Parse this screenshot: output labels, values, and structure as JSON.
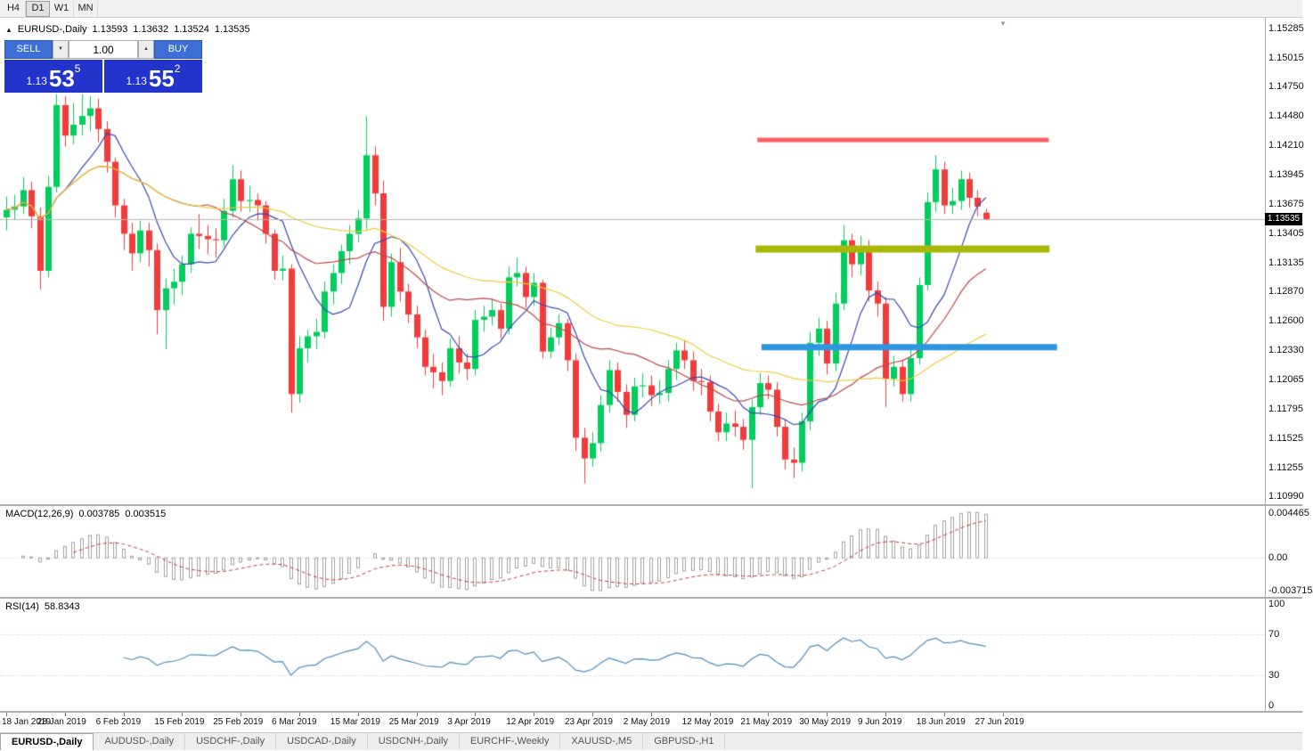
{
  "toolbar": {
    "timeframes": [
      "H4",
      "D1",
      "W1",
      "MN"
    ],
    "active": "D1"
  },
  "chart_header": {
    "symbol_label": "EURUSD-,Daily",
    "open": "1.13593",
    "high": "1.13632",
    "low": "1.13524",
    "close": "1.13535"
  },
  "trade_panel": {
    "sell_label": "SELL",
    "buy_label": "BUY",
    "volume": "1.00",
    "sell_price": {
      "prefix": "1.13",
      "main": "53",
      "sup": "5"
    },
    "buy_price": {
      "prefix": "1.13",
      "main": "55",
      "sup": "2"
    }
  },
  "icons": {
    "panel_toggle": "▲",
    "shift_marker": "▼",
    "spin_up": "▲",
    "spin_down": "▼"
  },
  "price_axis_labels": [
    "1.15285",
    "1.15015",
    "1.14750",
    "1.14480",
    "1.14210",
    "1.13945",
    "1.13675",
    "1.13405",
    "1.13135",
    "1.12870",
    "1.12600",
    "1.12330",
    "1.12065",
    "1.11795",
    "1.11525",
    "1.11255",
    "1.10990"
  ],
  "current_price_tag": "1.13535",
  "date_axis_labels": [
    "18 Jan 2019",
    "28 Jan 2019",
    "6 Feb 2019",
    "15 Feb 2019",
    "25 Feb 2019",
    "6 Mar 2019",
    "15 Mar 2019",
    "25 Mar 2019",
    "3 Apr 2019",
    "12 Apr 2019",
    "23 Apr 2019",
    "2 May 2019",
    "12 May 2019",
    "21 May 2019",
    "30 May 2019",
    "9 Jun 2019",
    "18 Jun 2019",
    "27 Jun 2019"
  ],
  "indicators": {
    "macd": {
      "label": "MACD(12,26,9)",
      "value": "0.003785",
      "signal_value": "0.003515",
      "axis_labels": [
        "0.004465",
        "0.00",
        "-0.003715"
      ]
    },
    "rsi": {
      "label": "RSI(14)",
      "value": "58.8343",
      "axis_labels": [
        "100",
        "70",
        "30",
        "0"
      ],
      "levels": [
        70,
        30
      ]
    }
  },
  "tabs": [
    {
      "label": "EURUSD-,Daily",
      "active": true
    },
    {
      "label": "AUDUSD-,Daily",
      "active": false
    },
    {
      "label": "USDCHF-,Daily",
      "active": false
    },
    {
      "label": "USDCAD-,Daily",
      "active": false
    },
    {
      "label": "USDCNH-,Daily",
      "active": false
    },
    {
      "label": "EURCHF-,Weekly",
      "active": false
    },
    {
      "label": "XAUUSD-,M5",
      "active": false
    },
    {
      "label": "GBPUSD-,H1",
      "active": false
    }
  ],
  "colors": {
    "up_candle": "#00CE5C",
    "down_candle": "#F23B3B",
    "ma_fast": "#3647B3",
    "ma_mid": "#C04646",
    "ma_slow": "#EFCB3C",
    "macd_hist": "#A0A0A0",
    "macd_signal": "#C93A3A",
    "rsi_line": "#4C8EBE",
    "level_line": "#C8C8C8",
    "current_price_line": "#B5B5B5",
    "tag_bg": "#000000"
  },
  "chart_data": {
    "type": "candlestick",
    "symbol": "EURUSD-",
    "timeframe": "Daily",
    "y_range": [
      1.1092,
      1.1538
    ],
    "current_price": 1.13535,
    "hlines": [
      {
        "price": 1.1426,
        "start_index": 89.7,
        "end_index": 124.5,
        "color": "#FA5E5E",
        "width": 5
      },
      {
        "price": 1.1326,
        "start_index": 89.5,
        "end_index": 124.6,
        "color": "#A9B808",
        "width": 8
      },
      {
        "price": 1.1236,
        "start_index": 90.2,
        "end_index": 125.5,
        "color": "#2F96E0",
        "width": 7
      }
    ],
    "ohlc": [
      [
        1.1355,
        1.1374,
        1.1343,
        1.1362
      ],
      [
        1.1362,
        1.1376,
        1.1353,
        1.1365
      ],
      [
        1.1365,
        1.1392,
        1.1358,
        1.138
      ],
      [
        1.138,
        1.1388,
        1.1345,
        1.1356
      ],
      [
        1.1356,
        1.1364,
        1.1289,
        1.1306
      ],
      [
        1.1306,
        1.1393,
        1.13,
        1.1383
      ],
      [
        1.1383,
        1.1468,
        1.1378,
        1.1458
      ],
      [
        1.1458,
        1.1466,
        1.142,
        1.143
      ],
      [
        1.143,
        1.146,
        1.1422,
        1.144
      ],
      [
        1.144,
        1.1468,
        1.143,
        1.1448
      ],
      [
        1.1448,
        1.1466,
        1.1434,
        1.1455
      ],
      [
        1.1455,
        1.1464,
        1.1424,
        1.1436
      ],
      [
        1.1436,
        1.1443,
        1.1396,
        1.1406
      ],
      [
        1.1406,
        1.141,
        1.1355,
        1.1366
      ],
      [
        1.1366,
        1.1372,
        1.1325,
        1.134
      ],
      [
        1.134,
        1.135,
        1.1306,
        1.1322
      ],
      [
        1.1322,
        1.1352,
        1.1314,
        1.1343
      ],
      [
        1.1343,
        1.135,
        1.131,
        1.1325
      ],
      [
        1.1325,
        1.1331,
        1.1248,
        1.127
      ],
      [
        1.127,
        1.1299,
        1.1234,
        1.129
      ],
      [
        1.129,
        1.1308,
        1.1275,
        1.1296
      ],
      [
        1.1296,
        1.132,
        1.1284,
        1.1312
      ],
      [
        1.1312,
        1.1346,
        1.1304,
        1.134
      ],
      [
        1.134,
        1.1358,
        1.1326,
        1.1338
      ],
      [
        1.1338,
        1.1348,
        1.1321,
        1.1335
      ],
      [
        1.1335,
        1.1345,
        1.1318,
        1.1334
      ],
      [
        1.1334,
        1.1372,
        1.1328,
        1.1361
      ],
      [
        1.1361,
        1.1403,
        1.1355,
        1.139
      ],
      [
        1.139,
        1.1398,
        1.136,
        1.137
      ],
      [
        1.137,
        1.1384,
        1.136,
        1.1371
      ],
      [
        1.1371,
        1.1377,
        1.1352,
        1.1366
      ],
      [
        1.1366,
        1.137,
        1.1331,
        1.134
      ],
      [
        1.134,
        1.1344,
        1.1298,
        1.1306
      ],
      [
        1.1306,
        1.132,
        1.1297,
        1.1308
      ],
      [
        1.1308,
        1.1312,
        1.1176,
        1.1193
      ],
      [
        1.1193,
        1.1246,
        1.1185,
        1.1235
      ],
      [
        1.1235,
        1.1252,
        1.1222,
        1.1246
      ],
      [
        1.1246,
        1.1262,
        1.1234,
        1.125
      ],
      [
        1.125,
        1.1296,
        1.1244,
        1.1287
      ],
      [
        1.1287,
        1.1312,
        1.1275,
        1.1304
      ],
      [
        1.1304,
        1.133,
        1.1294,
        1.1324
      ],
      [
        1.1324,
        1.1348,
        1.1312,
        1.134
      ],
      [
        1.134,
        1.1362,
        1.1332,
        1.1354
      ],
      [
        1.1354,
        1.1448,
        1.1344,
        1.1412
      ],
      [
        1.1412,
        1.142,
        1.1366,
        1.1377
      ],
      [
        1.1377,
        1.1389,
        1.126,
        1.1273
      ],
      [
        1.1273,
        1.1322,
        1.1264,
        1.1314
      ],
      [
        1.1314,
        1.1327,
        1.1278,
        1.1287
      ],
      [
        1.1287,
        1.1294,
        1.1258,
        1.1266
      ],
      [
        1.1266,
        1.1274,
        1.1235,
        1.1245
      ],
      [
        1.1245,
        1.1252,
        1.121,
        1.1218
      ],
      [
        1.1218,
        1.123,
        1.1198,
        1.1213
      ],
      [
        1.1213,
        1.1222,
        1.1192,
        1.1205
      ],
      [
        1.1205,
        1.1244,
        1.12,
        1.1235
      ],
      [
        1.1235,
        1.1246,
        1.1212,
        1.1222
      ],
      [
        1.1222,
        1.123,
        1.1206,
        1.1216
      ],
      [
        1.1216,
        1.127,
        1.121,
        1.1261
      ],
      [
        1.1261,
        1.1274,
        1.125,
        1.1264
      ],
      [
        1.1264,
        1.128,
        1.1256,
        1.127
      ],
      [
        1.127,
        1.1276,
        1.1244,
        1.1253
      ],
      [
        1.1253,
        1.131,
        1.1248,
        1.13
      ],
      [
        1.13,
        1.1318,
        1.1292,
        1.1304
      ],
      [
        1.1304,
        1.131,
        1.1272,
        1.1282
      ],
      [
        1.1282,
        1.1304,
        1.1274,
        1.1295
      ],
      [
        1.1295,
        1.1298,
        1.1226,
        1.1232
      ],
      [
        1.1232,
        1.1254,
        1.1226,
        1.1245
      ],
      [
        1.1245,
        1.1266,
        1.1238,
        1.1258
      ],
      [
        1.1258,
        1.1262,
        1.1214,
        1.1224
      ],
      [
        1.1224,
        1.123,
        1.1141,
        1.1153
      ],
      [
        1.1153,
        1.1162,
        1.1111,
        1.1134
      ],
      [
        1.1134,
        1.1158,
        1.1126,
        1.1148
      ],
      [
        1.1148,
        1.1192,
        1.114,
        1.1183
      ],
      [
        1.1183,
        1.1224,
        1.1176,
        1.1215
      ],
      [
        1.1215,
        1.1222,
        1.1186,
        1.1195
      ],
      [
        1.1195,
        1.1202,
        1.1162,
        1.1174
      ],
      [
        1.1174,
        1.1208,
        1.1168,
        1.12
      ],
      [
        1.12,
        1.1212,
        1.119,
        1.1201
      ],
      [
        1.1201,
        1.121,
        1.1182,
        1.1192
      ],
      [
        1.1192,
        1.1206,
        1.1184,
        1.1194
      ],
      [
        1.1194,
        1.1224,
        1.1186,
        1.1216
      ],
      [
        1.1216,
        1.124,
        1.1206,
        1.1233
      ],
      [
        1.1233,
        1.1242,
        1.1216,
        1.1224
      ],
      [
        1.1224,
        1.1232,
        1.1196,
        1.1205
      ],
      [
        1.1205,
        1.1216,
        1.1192,
        1.1204
      ],
      [
        1.1204,
        1.121,
        1.1168,
        1.1177
      ],
      [
        1.1177,
        1.1184,
        1.115,
        1.1158
      ],
      [
        1.1158,
        1.1176,
        1.115,
        1.1166
      ],
      [
        1.1166,
        1.1178,
        1.1154,
        1.1163
      ],
      [
        1.1163,
        1.117,
        1.1142,
        1.1151
      ],
      [
        1.1151,
        1.1188,
        1.1107,
        1.1181
      ],
      [
        1.1181,
        1.1212,
        1.1174,
        1.1203
      ],
      [
        1.1203,
        1.121,
        1.1188,
        1.1197
      ],
      [
        1.1197,
        1.1204,
        1.1154,
        1.1163
      ],
      [
        1.1163,
        1.117,
        1.1124,
        1.1133
      ],
      [
        1.1133,
        1.1144,
        1.1116,
        1.113
      ],
      [
        1.113,
        1.1176,
        1.1122,
        1.1168
      ],
      [
        1.1168,
        1.125,
        1.116,
        1.124
      ],
      [
        1.124,
        1.1263,
        1.1228,
        1.1253
      ],
      [
        1.1253,
        1.126,
        1.1211,
        1.1221
      ],
      [
        1.1221,
        1.1286,
        1.1214,
        1.1276
      ],
      [
        1.1276,
        1.1348,
        1.127,
        1.1334
      ],
      [
        1.1334,
        1.134,
        1.13,
        1.1312
      ],
      [
        1.1312,
        1.1338,
        1.1302,
        1.1328
      ],
      [
        1.1328,
        1.1334,
        1.1278,
        1.1288
      ],
      [
        1.1288,
        1.1296,
        1.1264,
        1.1276
      ],
      [
        1.1276,
        1.1282,
        1.1181,
        1.1207
      ],
      [
        1.1207,
        1.1228,
        1.12,
        1.1218
      ],
      [
        1.1218,
        1.1224,
        1.1186,
        1.1193
      ],
      [
        1.1193,
        1.1234,
        1.1186,
        1.1226
      ],
      [
        1.1226,
        1.13,
        1.122,
        1.1293
      ],
      [
        1.1293,
        1.1378,
        1.1288,
        1.1369
      ],
      [
        1.1369,
        1.1412,
        1.136,
        1.1399
      ],
      [
        1.1399,
        1.1406,
        1.1358,
        1.1366
      ],
      [
        1.1366,
        1.1382,
        1.1358,
        1.137
      ],
      [
        1.137,
        1.1398,
        1.1362,
        1.139
      ],
      [
        1.139,
        1.1396,
        1.1364,
        1.1373
      ],
      [
        1.1373,
        1.138,
        1.1356,
        1.1365
      ],
      [
        1.13593,
        1.13632,
        1.13524,
        1.13535
      ]
    ]
  }
}
